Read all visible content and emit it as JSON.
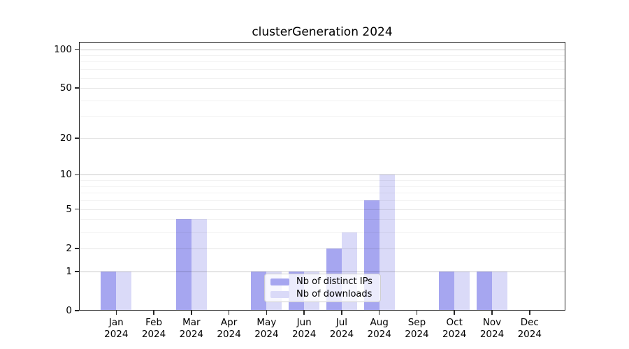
{
  "title": "clusterGeneration 2024",
  "chart_data": {
    "type": "bar",
    "title": "clusterGeneration 2024",
    "categories": [
      "Jan 2024",
      "Feb 2024",
      "Mar 2024",
      "Apr 2024",
      "May 2024",
      "Jun 2024",
      "Jul 2024",
      "Aug 2024",
      "Sep 2024",
      "Oct 2024",
      "Nov 2024",
      "Dec 2024"
    ],
    "months": [
      "Jan",
      "Feb",
      "Mar",
      "Apr",
      "May",
      "Jun",
      "Jul",
      "Aug",
      "Sep",
      "Oct",
      "Nov",
      "Dec"
    ],
    "year": "2024",
    "series": [
      {
        "name": "Nb of distinct IPs",
        "key": "distinct-ips",
        "color": "#a6a6f0",
        "values": [
          1,
          0,
          4,
          0,
          1,
          1,
          2,
          6,
          0,
          1,
          1,
          0
        ]
      },
      {
        "name": "Nb of downloads",
        "key": "downloads",
        "color": "#dadaf8",
        "values": [
          1,
          0,
          4,
          0,
          1,
          1,
          3,
          10,
          0,
          1,
          1,
          0
        ]
      }
    ],
    "yscale": "log1p",
    "ylim": [
      0,
      114
    ],
    "y_ticks": [
      0,
      1,
      2,
      5,
      10,
      20,
      50,
      100
    ],
    "y_tick_labels": [
      "0",
      "1",
      "2",
      "5",
      "10",
      "20",
      "50",
      "100"
    ],
    "grid": true,
    "grid_mid_ticks": [
      2,
      5,
      20,
      50
    ],
    "grid_minor_ticks": [
      3,
      4,
      6,
      7,
      8,
      9,
      30,
      40,
      60,
      70,
      80,
      90
    ],
    "legend_position": "lower center inside",
    "legend_items": [
      "Nb of distinct IPs",
      "Nb of downloads"
    ]
  },
  "colors": {
    "series_dark": "#a6a6f0",
    "series_light": "#dadaf8",
    "spine": "#262626",
    "grid_decade": "rgba(0,0,0,0.21)",
    "grid_mid": "rgba(0,0,0,0.10)",
    "grid_minor": "rgba(0,0,0,0.05)"
  }
}
